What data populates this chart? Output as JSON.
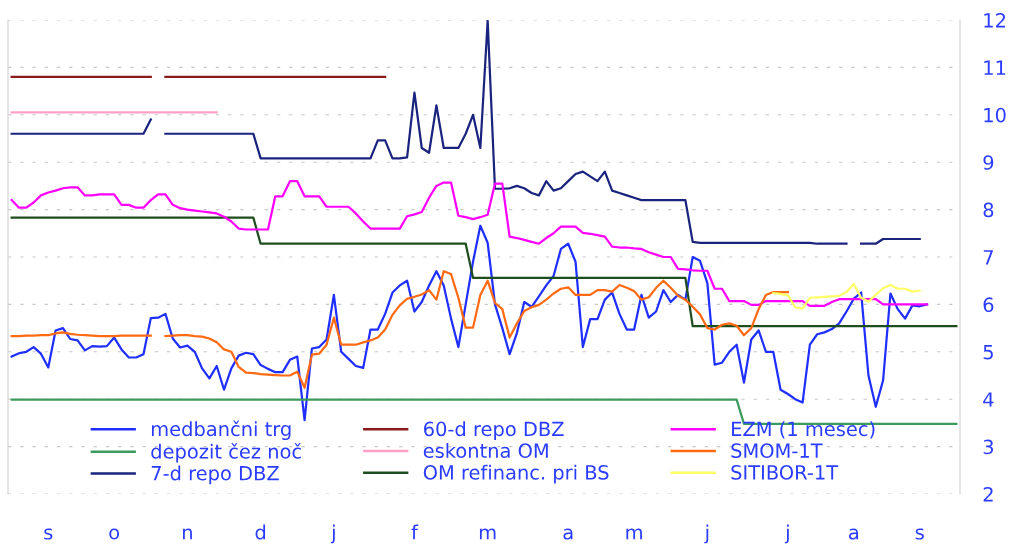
{
  "chart_data": {
    "type": "line",
    "categories": [
      null,
      null,
      null,
      null,
      null,
      "s",
      null,
      null,
      null,
      null,
      null,
      null,
      null,
      null,
      "o",
      null,
      null,
      null,
      null,
      null,
      null,
      null,
      null,
      null,
      "n",
      null,
      null,
      null,
      null,
      null,
      null,
      null,
      null,
      null,
      "d",
      null,
      null,
      null,
      null,
      null,
      null,
      null,
      null,
      null,
      "j",
      null,
      null,
      null,
      null,
      null,
      null,
      null,
      null,
      null,
      null,
      "f",
      null,
      null,
      null,
      null,
      null,
      null,
      null,
      null,
      null,
      "m",
      null,
      null,
      null,
      null,
      null,
      null,
      null,
      null,
      null,
      null,
      "a",
      null,
      null,
      null,
      null,
      null,
      null,
      null,
      null,
      "m",
      null,
      null,
      null,
      null,
      null,
      null,
      null,
      null,
      null,
      "j",
      null,
      null,
      null,
      null,
      null,
      null,
      null,
      null,
      null,
      null,
      "j",
      null,
      null,
      null,
      null,
      null,
      null,
      null,
      null,
      "a",
      null,
      null,
      null,
      null,
      null,
      null,
      null,
      null,
      "s",
      null,
      null,
      null,
      null,
      null
    ],
    "ylim": [
      2,
      12
    ],
    "yticks": [
      2,
      3,
      4,
      5,
      6,
      7,
      8,
      9,
      10,
      11,
      12
    ],
    "grid": "y",
    "legend": "bottom",
    "marker": "none",
    "line_style": "solid",
    "series": [
      {
        "name": "medbančni trg",
        "color": "#1f2fff",
        "values": [
          4.9,
          4.97,
          5.0,
          5.1,
          4.96,
          4.67,
          5.45,
          5.5,
          5.27,
          5.24,
          5.03,
          5.12,
          5.11,
          5.12,
          5.3,
          5.05,
          4.88,
          4.88,
          4.95,
          5.71,
          5.72,
          5.8,
          5.28,
          5.09,
          5.13,
          5.0,
          4.65,
          4.44,
          4.7,
          4.2,
          4.65,
          4.92,
          4.98,
          4.95,
          4.72,
          4.64,
          4.57,
          4.57,
          4.83,
          4.9,
          3.56,
          5.07,
          5.1,
          5.26,
          6.2,
          5.0,
          4.85,
          4.7,
          4.66,
          5.47,
          5.47,
          5.8,
          6.25,
          6.4,
          6.5,
          5.85,
          6.05,
          6.4,
          6.7,
          6.4,
          5.7,
          5.1,
          6.0,
          6.9,
          7.66,
          7.3,
          6.0,
          5.5,
          4.95,
          5.4,
          6.05,
          5.95,
          6.17,
          6.4,
          6.6,
          7.17,
          7.28,
          6.9,
          5.1,
          5.69,
          5.69,
          6.1,
          6.25,
          5.8,
          5.47,
          5.47,
          6.2,
          5.72,
          5.85,
          6.3,
          6.05,
          6.2,
          6.1,
          7.0,
          6.92,
          6.45,
          4.73,
          4.77,
          5.0,
          5.15,
          4.35,
          5.26,
          5.45,
          5.0,
          5.0,
          4.2,
          4.11,
          4.0,
          3.93,
          5.15,
          5.37,
          5.41,
          5.48,
          5.6,
          5.85,
          6.12,
          6.25,
          4.5,
          3.84,
          4.4,
          6.23,
          5.9,
          5.7,
          5.98,
          5.96,
          6.0,
          null,
          null,
          null,
          null
        ]
      },
      {
        "name": "depozit čez noč",
        "color": "#3c9a5f",
        "values": [
          3.99,
          3.99,
          3.99,
          3.99,
          3.99,
          3.99,
          3.99,
          3.99,
          3.99,
          3.99,
          3.99,
          3.99,
          3.99,
          3.99,
          3.99,
          3.99,
          3.99,
          3.99,
          3.99,
          3.99,
          3.99,
          3.99,
          3.99,
          3.99,
          3.99,
          3.99,
          3.99,
          3.99,
          3.99,
          3.99,
          3.99,
          3.99,
          3.99,
          3.99,
          3.99,
          3.99,
          3.99,
          3.99,
          3.99,
          3.99,
          3.99,
          3.99,
          3.99,
          3.99,
          3.99,
          3.99,
          3.99,
          3.99,
          3.99,
          3.99,
          3.99,
          3.99,
          3.99,
          3.99,
          3.99,
          3.99,
          3.99,
          3.99,
          3.99,
          3.99,
          3.99,
          3.99,
          3.99,
          3.99,
          3.99,
          3.99,
          3.99,
          3.99,
          3.99,
          3.99,
          3.99,
          3.99,
          3.99,
          3.99,
          3.99,
          3.99,
          3.99,
          3.99,
          3.99,
          3.99,
          3.99,
          3.99,
          3.99,
          3.99,
          3.99,
          3.99,
          3.99,
          3.99,
          3.99,
          3.99,
          3.99,
          3.99,
          3.99,
          3.99,
          3.99,
          3.99,
          3.99,
          3.99,
          3.99,
          3.99,
          3.48,
          3.48,
          3.48,
          3.48,
          3.48,
          3.48,
          3.48,
          3.48,
          3.48,
          3.48,
          3.48,
          3.48,
          3.48,
          3.48,
          3.48,
          3.48,
          3.48,
          3.48,
          3.48,
          3.48,
          3.48,
          3.48,
          3.48,
          3.48,
          3.48,
          3.48,
          3.48,
          3.48,
          3.48,
          3.48
        ]
      },
      {
        "name": "7-d repo DBZ",
        "color": "#1a237e",
        "values": [
          9.6,
          9.6,
          9.6,
          9.6,
          9.6,
          9.6,
          9.6,
          9.6,
          9.6,
          9.6,
          9.6,
          9.6,
          9.6,
          9.6,
          9.6,
          9.6,
          9.6,
          9.6,
          9.6,
          9.9,
          null,
          9.6,
          9.6,
          9.6,
          9.6,
          9.6,
          9.6,
          9.6,
          9.6,
          9.6,
          9.6,
          9.6,
          9.6,
          9.6,
          9.08,
          9.08,
          9.08,
          9.08,
          9.08,
          9.08,
          9.08,
          9.08,
          9.08,
          9.08,
          9.08,
          9.08,
          9.08,
          9.08,
          9.08,
          9.08,
          9.46,
          9.46,
          9.08,
          9.08,
          9.1,
          10.47,
          9.3,
          9.2,
          10.2,
          9.3,
          9.3,
          9.3,
          9.6,
          10.0,
          9.3,
          11.98,
          8.44,
          8.44,
          8.45,
          8.5,
          8.45,
          8.35,
          8.3,
          8.6,
          8.4,
          8.45,
          8.6,
          8.75,
          8.8,
          8.7,
          8.6,
          8.8,
          8.4,
          8.35,
          8.3,
          8.25,
          8.2,
          8.2,
          8.2,
          8.2,
          8.2,
          8.2,
          8.2,
          7.32,
          7.3,
          7.3,
          7.3,
          7.3,
          7.3,
          7.3,
          7.3,
          7.3,
          7.3,
          7.3,
          7.3,
          7.3,
          7.3,
          7.3,
          7.3,
          7.3,
          7.28,
          7.28,
          7.28,
          7.28,
          7.28,
          null,
          7.28,
          7.28,
          7.28,
          7.38,
          7.38,
          7.38,
          7.38,
          7.38,
          7.38,
          null,
          null,
          null,
          null,
          null
        ]
      },
      {
        "name": "60-d repo DBZ",
        "color": "#8b1a1a",
        "values": [
          10.8,
          10.8,
          10.8,
          10.8,
          10.8,
          10.8,
          10.8,
          10.8,
          10.8,
          10.8,
          10.8,
          10.8,
          10.8,
          10.8,
          10.8,
          10.8,
          10.8,
          10.8,
          10.8,
          10.8,
          null,
          10.8,
          10.8,
          10.8,
          10.8,
          10.8,
          10.8,
          10.8,
          10.8,
          10.8,
          10.8,
          10.8,
          10.8,
          10.8,
          10.8,
          10.8,
          10.8,
          10.8,
          10.8,
          10.8,
          10.8,
          10.8,
          10.8,
          10.8,
          10.8,
          10.8,
          10.8,
          10.8,
          10.8,
          10.8,
          10.8,
          10.8,
          null,
          null,
          null,
          null,
          null,
          null,
          null,
          null,
          null,
          null,
          null,
          null,
          null,
          null,
          null,
          null,
          null,
          null,
          null,
          null,
          null,
          null,
          null,
          null,
          null,
          null,
          null,
          null,
          null,
          null,
          null,
          null,
          null,
          null,
          null,
          null,
          null,
          null,
          null,
          null,
          null,
          null,
          null,
          null,
          null,
          null,
          null,
          null,
          null,
          null,
          null,
          null,
          null,
          null,
          null,
          null,
          null,
          null,
          null,
          null,
          null,
          null,
          null,
          null,
          null,
          null,
          null,
          null,
          null,
          null,
          null,
          null,
          null,
          null,
          null,
          null,
          null,
          null
        ]
      },
      {
        "name": "eskontna OM",
        "color": "#ffa0c8",
        "values": [
          10.05,
          10.05,
          10.05,
          10.05,
          10.05,
          10.05,
          10.05,
          10.05,
          10.05,
          10.05,
          10.05,
          10.05,
          10.05,
          10.05,
          10.05,
          10.05,
          10.05,
          10.05,
          10.05,
          10.05,
          10.05,
          10.05,
          10.05,
          10.05,
          10.05,
          10.05,
          10.05,
          10.05,
          10.05,
          null,
          null,
          null,
          null,
          null,
          null,
          null,
          null,
          null,
          null,
          null,
          null,
          null,
          null,
          null,
          null,
          null,
          null,
          null,
          null,
          null,
          null,
          null,
          null,
          null,
          null,
          null,
          null,
          null,
          null,
          null,
          null,
          null,
          null,
          null,
          null,
          null,
          null,
          null,
          null,
          null,
          null,
          null,
          null,
          null,
          null,
          null,
          null,
          null,
          null,
          null,
          null,
          null,
          null,
          null,
          null,
          null,
          null,
          null,
          null,
          null,
          null,
          null,
          null,
          null,
          null,
          null,
          null,
          null,
          null,
          null,
          null,
          null,
          null,
          null,
          null,
          null,
          null,
          null,
          null,
          null,
          null,
          null,
          null,
          null,
          null,
          null,
          null,
          null,
          null,
          null,
          null,
          null,
          null,
          null,
          null,
          null,
          null,
          null,
          null,
          null
        ]
      },
      {
        "name": "OM refinanc. pri BS",
        "color": "#1e4d1e",
        "values": [
          7.83,
          7.83,
          7.83,
          7.83,
          7.83,
          7.83,
          7.83,
          7.83,
          7.83,
          7.83,
          7.83,
          7.83,
          7.83,
          7.83,
          7.83,
          7.83,
          7.83,
          7.83,
          7.83,
          7.83,
          7.83,
          7.83,
          7.83,
          7.83,
          7.83,
          7.83,
          7.83,
          7.83,
          7.83,
          7.83,
          7.83,
          7.83,
          7.83,
          7.83,
          7.28,
          7.28,
          7.28,
          7.28,
          7.28,
          7.28,
          7.28,
          7.28,
          7.28,
          7.28,
          7.28,
          7.28,
          7.28,
          7.28,
          7.28,
          7.28,
          7.28,
          7.28,
          7.28,
          7.28,
          7.28,
          7.28,
          7.28,
          7.28,
          7.28,
          7.28,
          7.28,
          7.28,
          7.28,
          6.56,
          6.56,
          6.56,
          6.56,
          6.56,
          6.56,
          6.56,
          6.56,
          6.56,
          6.56,
          6.56,
          6.56,
          6.56,
          6.56,
          6.56,
          6.56,
          6.56,
          6.56,
          6.56,
          6.56,
          6.56,
          6.56,
          6.56,
          6.56,
          6.56,
          6.56,
          6.56,
          6.56,
          6.56,
          6.56,
          5.54,
          5.54,
          5.54,
          5.54,
          5.54,
          5.54,
          5.54,
          5.54,
          5.54,
          5.54,
          5.54,
          5.54,
          5.54,
          5.54,
          5.54,
          5.54,
          5.54,
          5.54,
          5.54,
          5.54,
          5.54,
          5.54,
          5.54,
          5.54,
          5.54,
          5.54,
          5.54,
          5.54,
          5.54,
          5.54,
          5.54,
          5.54,
          5.54,
          5.54,
          5.54,
          5.54,
          5.54
        ]
      },
      {
        "name": "EZM (1 mesec)",
        "color": "#ff00ff",
        "values": [
          8.2,
          8.04,
          8.04,
          8.15,
          8.3,
          8.36,
          8.4,
          8.45,
          8.47,
          8.47,
          8.3,
          8.3,
          8.32,
          8.32,
          8.32,
          8.1,
          8.1,
          8.04,
          8.04,
          8.2,
          8.32,
          8.32,
          8.1,
          8.03,
          8.0,
          7.98,
          7.96,
          7.94,
          7.92,
          7.85,
          7.75,
          7.6,
          7.58,
          7.58,
          7.58,
          7.58,
          8.28,
          8.28,
          8.6,
          8.6,
          8.28,
          8.28,
          8.28,
          8.06,
          8.06,
          8.06,
          8.06,
          7.92,
          7.75,
          7.6,
          7.6,
          7.6,
          7.6,
          7.6,
          7.86,
          7.9,
          7.95,
          8.25,
          8.5,
          8.57,
          8.57,
          7.87,
          7.84,
          7.8,
          7.84,
          7.89,
          8.55,
          8.55,
          7.43,
          7.4,
          7.36,
          7.32,
          7.28,
          7.4,
          7.5,
          7.64,
          7.64,
          7.64,
          7.51,
          7.49,
          7.46,
          7.43,
          7.22,
          7.2,
          7.2,
          7.18,
          7.17,
          7.1,
          7.05,
          7.0,
          7.0,
          6.75,
          6.74,
          6.72,
          6.71,
          6.71,
          6.33,
          6.33,
          6.07,
          6.07,
          6.07,
          5.99,
          5.99,
          6.07,
          6.07,
          6.07,
          6.07,
          6.07,
          6.07,
          5.97,
          5.97,
          5.97,
          6.05,
          6.11,
          6.11,
          6.11,
          6.11,
          6.11,
          6.11,
          6.0,
          6.0,
          6.0,
          6.0,
          6.0,
          6.0,
          6.0,
          null,
          null,
          null,
          null
        ]
      },
      {
        "name": "SMOM-1T",
        "color": "#ff6a13",
        "values": [
          5.33,
          5.33,
          5.34,
          5.34,
          5.35,
          5.35,
          5.39,
          5.41,
          5.38,
          5.36,
          5.35,
          5.34,
          5.33,
          5.33,
          5.33,
          5.34,
          5.34,
          5.34,
          5.34,
          5.34,
          null,
          5.33,
          5.34,
          5.35,
          5.35,
          5.33,
          5.32,
          5.28,
          5.2,
          5.05,
          5.0,
          4.68,
          4.56,
          4.55,
          4.53,
          4.52,
          4.51,
          4.5,
          4.5,
          4.58,
          4.24,
          4.94,
          4.96,
          5.15,
          5.72,
          5.15,
          5.15,
          5.15,
          5.2,
          5.24,
          5.3,
          5.47,
          5.78,
          5.98,
          6.12,
          6.16,
          6.21,
          6.3,
          6.1,
          6.7,
          6.64,
          6.14,
          5.51,
          5.51,
          6.2,
          6.5,
          6.03,
          5.9,
          5.3,
          5.6,
          5.86,
          5.94,
          5.99,
          6.1,
          6.23,
          6.33,
          6.36,
          6.2,
          6.2,
          6.2,
          6.3,
          6.3,
          6.27,
          6.41,
          6.35,
          6.28,
          6.1,
          6.15,
          6.35,
          6.5,
          6.35,
          6.18,
          6.1,
          5.95,
          5.79,
          5.5,
          5.47,
          5.57,
          5.6,
          5.55,
          5.35,
          5.5,
          5.9,
          6.2,
          6.26,
          6.26,
          6.26,
          null,
          null,
          null,
          null,
          null,
          null,
          null,
          null,
          null,
          null,
          null,
          null,
          null,
          null,
          null,
          null,
          null,
          null,
          null,
          null,
          null,
          null,
          null
        ]
      },
      {
        "name": "SITIBOR-1T",
        "color": "#ffff66",
        "values": [
          null,
          null,
          null,
          null,
          null,
          null,
          null,
          null,
          null,
          null,
          null,
          null,
          null,
          null,
          null,
          null,
          null,
          null,
          null,
          null,
          null,
          null,
          null,
          null,
          null,
          null,
          null,
          null,
          null,
          null,
          null,
          null,
          null,
          null,
          null,
          null,
          null,
          null,
          null,
          null,
          null,
          null,
          null,
          null,
          null,
          null,
          null,
          null,
          null,
          null,
          null,
          null,
          null,
          null,
          null,
          null,
          null,
          null,
          null,
          null,
          null,
          null,
          null,
          null,
          null,
          null,
          null,
          null,
          null,
          null,
          null,
          null,
          null,
          null,
          null,
          null,
          null,
          null,
          null,
          null,
          null,
          null,
          null,
          null,
          null,
          null,
          null,
          null,
          null,
          null,
          null,
          null,
          null,
          null,
          null,
          null,
          null,
          null,
          null,
          null,
          null,
          null,
          null,
          null,
          6.24,
          6.22,
          6.19,
          5.94,
          5.91,
          6.14,
          6.15,
          6.16,
          6.17,
          6.18,
          6.26,
          6.43,
          6.14,
          6.06,
          6.2,
          6.34,
          6.41,
          6.33,
          6.33,
          6.27,
          6.29,
          null,
          null,
          null,
          null,
          null
        ]
      }
    ]
  }
}
